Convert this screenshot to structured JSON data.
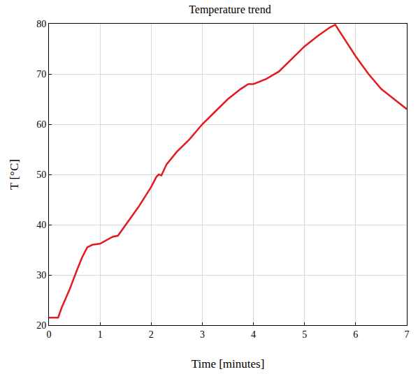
{
  "chart_data": {
    "type": "line",
    "title": "Temperature trend",
    "x_label": "Time [minutes]",
    "y_label": "T [°C]",
    "x": [
      0,
      0.18,
      0.25,
      0.4,
      0.55,
      0.65,
      0.75,
      0.85,
      1.0,
      1.1,
      1.25,
      1.35,
      1.5,
      1.75,
      2.0,
      2.1,
      2.15,
      2.2,
      2.3,
      2.5,
      2.75,
      3.0,
      3.25,
      3.5,
      3.75,
      3.9,
      4.0,
      4.25,
      4.5,
      4.75,
      5.0,
      5.25,
      5.5,
      5.6,
      5.75,
      6.0,
      6.25,
      6.5,
      6.75,
      7.0
    ],
    "series": [
      {
        "name": "T",
        "color": "#e41a1c",
        "values": [
          21.5,
          21.5,
          23.5,
          27,
          31,
          33.5,
          35.5,
          36,
          36.2,
          36.8,
          37.6,
          37.8,
          40,
          43.5,
          47.5,
          49.5,
          50,
          49.8,
          52,
          54.5,
          57,
          60,
          62.5,
          65,
          67,
          68,
          68,
          69,
          70.5,
          73,
          75.5,
          77.5,
          79.3,
          79.8,
          77.5,
          73.5,
          70,
          67,
          65,
          63
        ]
      }
    ],
    "xlim": [
      0,
      7
    ],
    "xticks": [
      0,
      1,
      2,
      3,
      4,
      5,
      6,
      7
    ],
    "ylim": [
      20,
      80
    ],
    "yticks": [
      20,
      30,
      40,
      50,
      60,
      70,
      80
    ],
    "grid": true
  }
}
